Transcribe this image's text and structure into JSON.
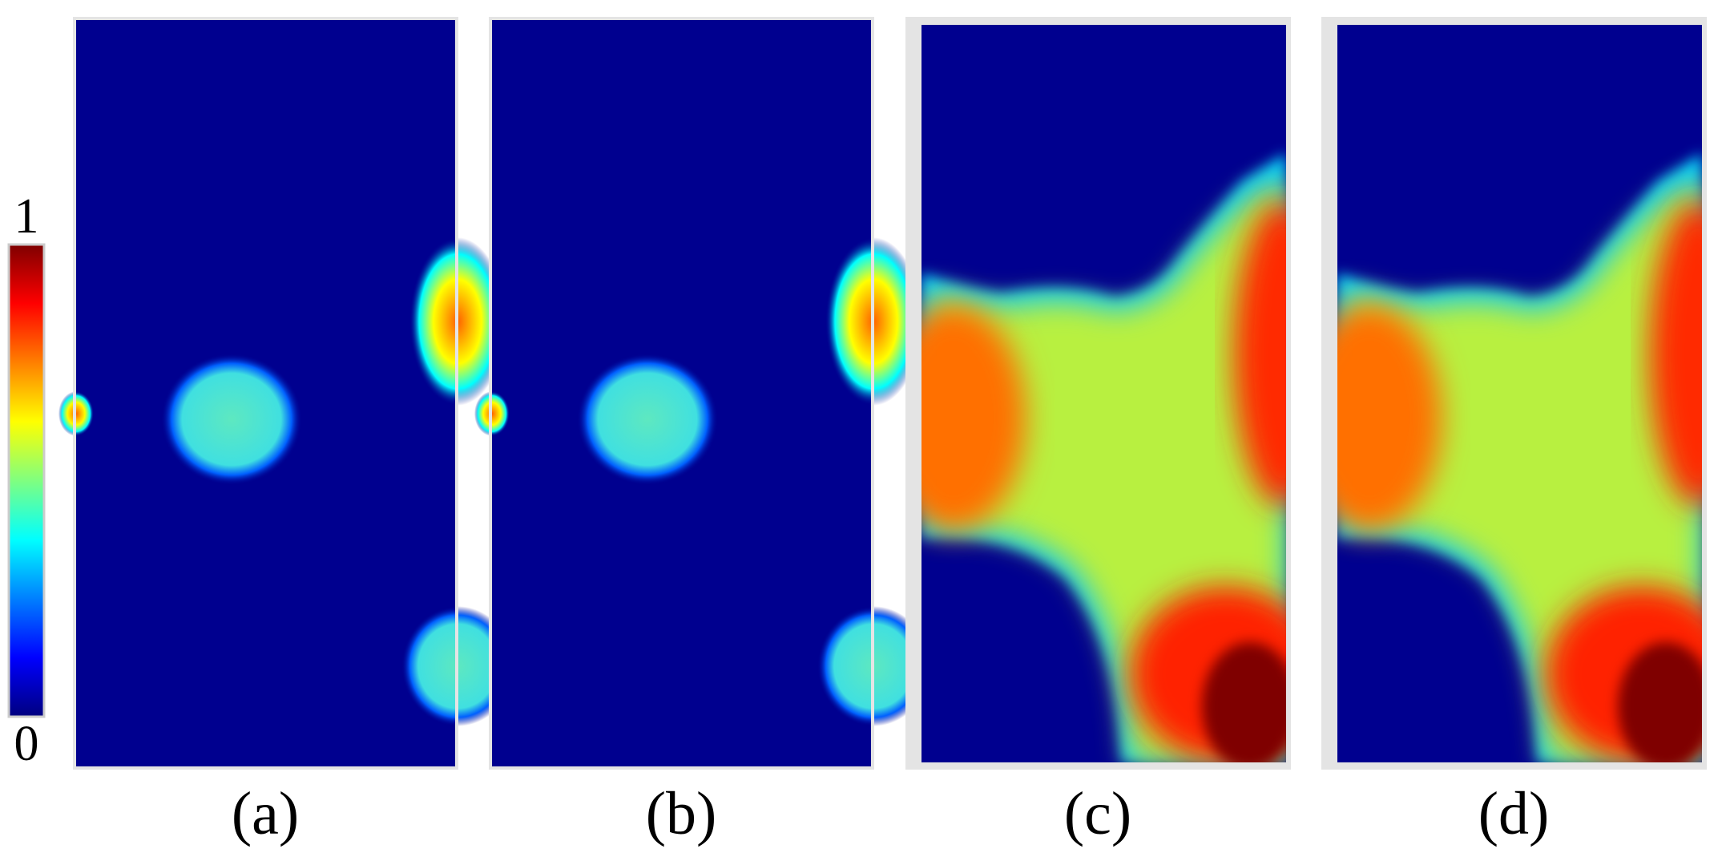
{
  "colorbar": {
    "max_label": "1",
    "min_label": "0"
  },
  "panels": [
    {
      "label": "(a)"
    },
    {
      "label": "(b)"
    },
    {
      "label": "(c)"
    },
    {
      "label": "(d)"
    }
  ]
}
